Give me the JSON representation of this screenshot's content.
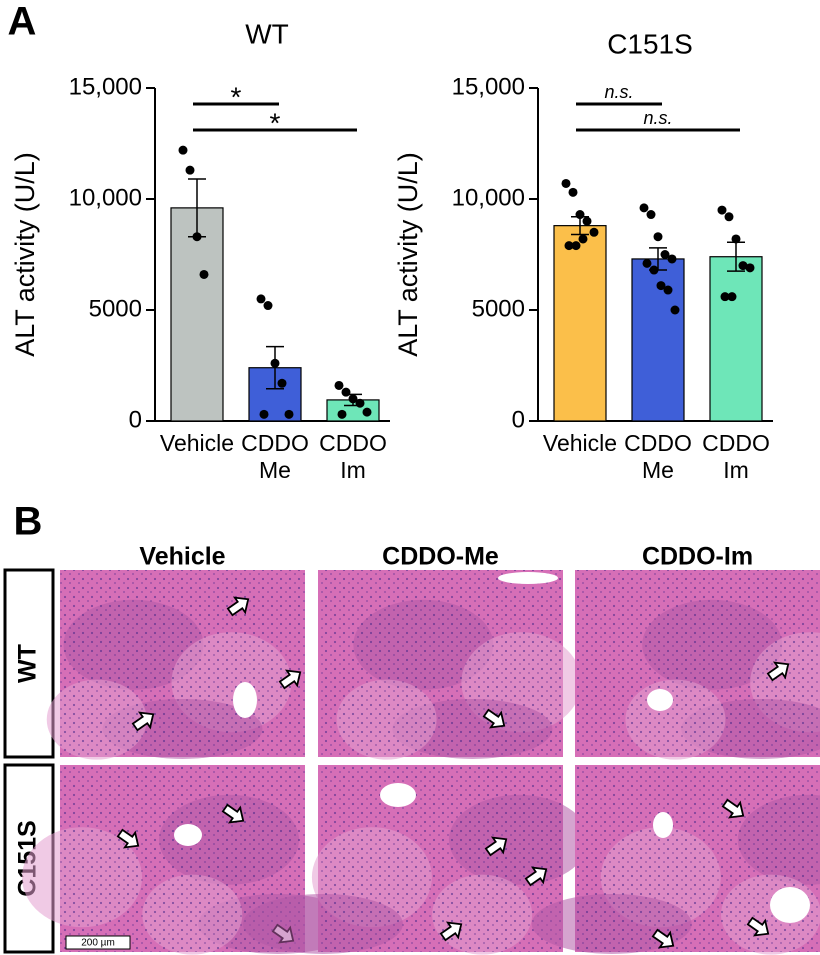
{
  "panel_a": {
    "label": "A"
  },
  "chart_data": [
    {
      "type": "bar",
      "title": "WT",
      "ylabel": "ALT activity (U/L)",
      "categories": [
        [
          "Vehicle"
        ],
        [
          "CDDO",
          "Me"
        ],
        [
          "CDDO",
          "Im"
        ]
      ],
      "values": [
        9600,
        2400,
        950
      ],
      "errors": [
        1300,
        950,
        250
      ],
      "points": [
        [
          12200,
          11300,
          8300,
          6600
        ],
        [
          5500,
          5200,
          2600,
          1700,
          300,
          300
        ],
        [
          1600,
          1300,
          1000,
          800,
          400,
          300
        ]
      ],
      "colors": [
        "#bdc3c0",
        "#3f5fd8",
        "#6ee6b8"
      ],
      "ylim": [
        0,
        15000
      ],
      "yticks": [
        0,
        5000,
        {
          "value": 10000,
          "label": "10,000"
        },
        {
          "value": 15000,
          "label": "15,000"
        }
      ],
      "annotations": [
        {
          "text": "*",
          "from": 0,
          "to": 1,
          "color": "#e8291f"
        },
        {
          "text": "*",
          "from": 0,
          "to": 2,
          "color": "#e8291f"
        }
      ]
    },
    {
      "type": "bar",
      "title": "C151S",
      "ylabel": "ALT activity (U/L)",
      "categories": [
        [
          "Vehicle"
        ],
        [
          "CDDO",
          "Me"
        ],
        [
          "CDDO",
          "Im"
        ]
      ],
      "values": [
        8800,
        7300,
        7400
      ],
      "errors": [
        400,
        500,
        650
      ],
      "points": [
        [
          10700,
          10300,
          9300,
          9000,
          8500,
          7900,
          7900,
          8200
        ],
        [
          9600,
          9300,
          8300,
          7500,
          7300,
          7100,
          6800,
          6100,
          5900,
          5000
        ],
        [
          9500,
          9200,
          8200,
          7000,
          6900,
          5600,
          5600
        ]
      ],
      "colors": [
        "#fbbf4a",
        "#3f5fd8",
        "#6ee6b8"
      ],
      "ylim": [
        0,
        15000
      ],
      "yticks": [
        0,
        5000,
        {
          "value": 10000,
          "label": "10,000"
        },
        {
          "value": 15000,
          "label": "15,000"
        }
      ],
      "annotations": [
        {
          "text": "n.s.",
          "from": 0,
          "to": 1,
          "color": "#000000"
        },
        {
          "text": "n.s.",
          "from": 0,
          "to": 2,
          "color": "#000000"
        }
      ]
    }
  ],
  "panel_b": {
    "label": "B",
    "columns": [
      "Vehicle",
      "CDDO-Me",
      "CDDO-Im"
    ],
    "rows": [
      "WT",
      "C151S"
    ],
    "scale_bar": "200 µm"
  }
}
